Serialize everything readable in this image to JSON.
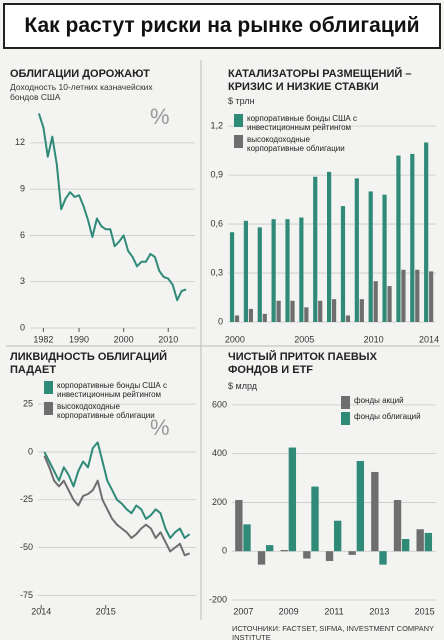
{
  "header": {
    "title": "Как растут риски на рынке облигаций",
    "source": "ИСТОЧНИКИ: FACTSET, SIFMA, INVESTMENT COMPANY INSTITUTE"
  },
  "chart_data": [
    {
      "type": "line",
      "title": "ОБЛИГАЦИИ ДОРОЖАЮТ",
      "subtitle": "Доходность 10-летних казначейских бондов США",
      "annotation": "%",
      "x": [
        1981,
        1982,
        1983,
        1984,
        1985,
        1986,
        1987,
        1988,
        1989,
        1990,
        1991,
        1992,
        1993,
        1994,
        1995,
        1996,
        1997,
        1998,
        1999,
        2000,
        2001,
        2002,
        2003,
        2004,
        2005,
        2006,
        2007,
        2008,
        2009,
        2010,
        2011,
        2012,
        2013,
        2014
      ],
      "series": [
        {
          "name": "Доходность",
          "color": "#2f8a78",
          "values": [
            13.9,
            13.0,
            11.1,
            12.4,
            10.6,
            7.7,
            8.4,
            8.8,
            8.5,
            8.6,
            7.9,
            7.0,
            5.9,
            7.1,
            6.6,
            6.4,
            6.4,
            5.3,
            5.6,
            6.0,
            5.0,
            4.6,
            4.0,
            4.3,
            4.3,
            4.8,
            4.6,
            3.7,
            3.3,
            3.2,
            2.8,
            1.8,
            2.4,
            2.5
          ]
        }
      ],
      "xlim": [
        1979,
        2016
      ],
      "xticks": [
        1982,
        1990,
        2000,
        2010
      ],
      "ylim": [
        0,
        14
      ],
      "yticks": [
        0,
        3,
        6,
        9,
        12
      ],
      "grid": true
    },
    {
      "type": "bar",
      "title": "КАТАЛИЗАТОРЫ РАЗМЕЩЕНИЙ – КРИЗИС И НИЗКИЕ СТАВКИ",
      "unit_label": "$ трлн",
      "categories": [
        "2000",
        null,
        null,
        null,
        null,
        "2005",
        null,
        null,
        null,
        null,
        "2010",
        null,
        null,
        null,
        "2014"
      ],
      "series": [
        {
          "name": "корпоративные бонды США с инвестиционным рейтингом",
          "color": "#2f8a78",
          "values": [
            0.55,
            0.62,
            0.58,
            0.63,
            0.63,
            0.64,
            0.89,
            0.92,
            0.71,
            0.88,
            0.8,
            0.78,
            1.02,
            1.03,
            1.1
          ]
        },
        {
          "name": "высокодоходные корпоративные облигации",
          "color": "#6e6e6e",
          "values": [
            0.04,
            0.08,
            0.05,
            0.13,
            0.13,
            0.09,
            0.13,
            0.14,
            0.04,
            0.14,
            0.25,
            0.22,
            0.32,
            0.32,
            0.31
          ]
        }
      ],
      "ylim": [
        0,
        1.25
      ],
      "yticks": [
        0,
        {
          "value": 0.3,
          "label": "0,3"
        },
        {
          "value": 0.6,
          "label": "0,6"
        },
        {
          "value": 0.9,
          "label": "0,9"
        },
        {
          "value": 1.2,
          "label": "1,2"
        }
      ],
      "grid": true,
      "legend": "upper left"
    },
    {
      "type": "line",
      "title": "ЛИКВИДНОСТЬ ОБЛИГАЦИЙ ПАДАЕТ",
      "annotation": "%",
      "x": [
        2014.05,
        2014.125,
        2014.2,
        2014.275,
        2014.35,
        2014.425,
        2014.5,
        2014.575,
        2014.65,
        2014.725,
        2014.8,
        2014.875,
        2014.95,
        2015.025,
        2015.1,
        2015.175,
        2015.25,
        2015.325,
        2015.4,
        2015.475,
        2015.55,
        2015.625,
        2015.7,
        2015.775,
        2015.85,
        2015.925,
        2016.0,
        2016.075,
        2016.15,
        2016.225,
        2016.3
      ],
      "series": [
        {
          "name": "корпоративные бонды США с инвестиционным рейтингом",
          "color": "#2f8a78",
          "values": [
            0,
            -5,
            -10,
            -15,
            -8,
            -12,
            -18,
            -10,
            -5,
            -8,
            2,
            5,
            -5,
            -15,
            -20,
            -25,
            -27,
            -30,
            -32,
            -28,
            -30,
            -35,
            -33,
            -30,
            -32,
            -40,
            -45,
            -42,
            -40,
            -45,
            -43
          ]
        },
        {
          "name": "высокодоходные корпоративные облигации",
          "color": "#6e6e6e",
          "values": [
            -2,
            -8,
            -15,
            -18,
            -15,
            -20,
            -25,
            -28,
            -23,
            -22,
            -20,
            -15,
            -25,
            -30,
            -35,
            -38,
            -40,
            -42,
            -45,
            -43,
            -40,
            -38,
            -40,
            -45,
            -42,
            -47,
            -52,
            -50,
            -48,
            -54,
            -53
          ]
        }
      ],
      "xlim": [
        2013.95,
        2016.4
      ],
      "xticks": [
        2014,
        2015
      ],
      "ylim": [
        -80,
        35
      ],
      "yticks": [
        25,
        0,
        -25,
        -50,
        -75
      ],
      "grid": true,
      "legend": "upper left"
    },
    {
      "type": "bar",
      "title": "ЧИСТЫЙ ПРИТОК ПАЕВЫХ ФОНДОВ И ETF",
      "unit_label": "$ млрд",
      "categories": [
        "2007",
        null,
        "2009",
        null,
        "2011",
        null,
        "2013",
        null,
        "2015"
      ],
      "series": [
        {
          "name": "фонды акций",
          "color": "#6e6e6e",
          "values": [
            210,
            -55,
            5,
            -30,
            -40,
            -15,
            325,
            210,
            90
          ]
        },
        {
          "name": "фонды облигаций",
          "color": "#2f8a78",
          "values": [
            110,
            25,
            425,
            265,
            125,
            370,
            -55,
            50,
            75
          ]
        }
      ],
      "ylim": [
        -200,
        620
      ],
      "yticks": [
        -200,
        0,
        200,
        400,
        600
      ],
      "grid": true,
      "legend": "upper right"
    }
  ]
}
